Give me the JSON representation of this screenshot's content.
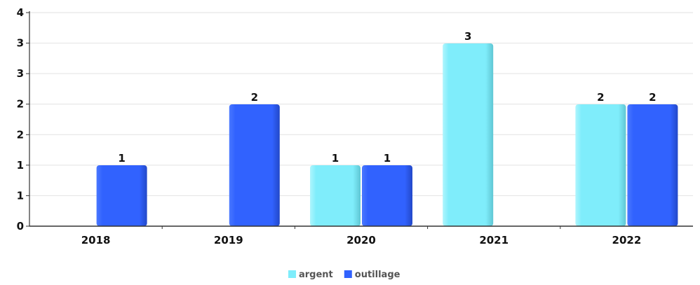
{
  "chart_data": {
    "type": "bar",
    "categories": [
      "2018",
      "2019",
      "2020",
      "2021",
      "2022"
    ],
    "series": [
      {
        "name": "argent",
        "color": "#7FEDFB",
        "values": [
          0,
          0,
          1,
          3,
          2
        ]
      },
      {
        "name": "outillage",
        "color": "#3162FE",
        "values": [
          1,
          2,
          1,
          0,
          2
        ]
      }
    ],
    "y_tick_labels": [
      "0",
      "1",
      "1",
      "2",
      "2",
      "3",
      "3",
      "4"
    ],
    "ylim": [
      0,
      3
    ],
    "grid": true,
    "legend": "bottom-center",
    "title": "",
    "xlabel": "",
    "ylabel": ""
  }
}
